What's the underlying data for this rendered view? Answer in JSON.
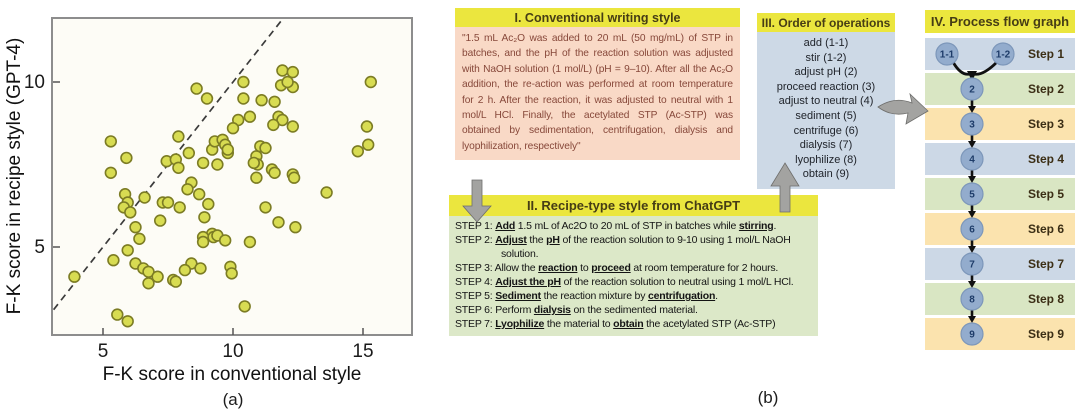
{
  "figure": {
    "label_a": "(a)",
    "label_b": "(b)"
  },
  "chart_data": {
    "type": "scatter",
    "title": "",
    "xlabel": "F-K score in conventional style",
    "ylabel": "F-K score in recipe style (GPT-4)",
    "xlim": [
      3,
      17
    ],
    "ylim": [
      2.3,
      12
    ],
    "xticks": [
      5,
      10,
      15
    ],
    "yticks": [
      5,
      10
    ],
    "grid": false,
    "identity_line": {
      "style": "dashed",
      "from": 3.1,
      "to": 11.95
    },
    "marker": {
      "shape": "circle",
      "fill": "#d8dc52",
      "stroke": "#7c7c24"
    },
    "points": [
      [
        5.3,
        8.2
      ],
      [
        5.9,
        7.7
      ],
      [
        5.3,
        7.25
      ],
      [
        7.9,
        8.35
      ],
      [
        8.6,
        9.8
      ],
      [
        9.0,
        9.5
      ],
      [
        7.45,
        7.6
      ],
      [
        7.8,
        7.65
      ],
      [
        7.9,
        7.4
      ],
      [
        8.3,
        7.85
      ],
      [
        9.2,
        7.95
      ],
      [
        9.3,
        8.2
      ],
      [
        9.6,
        8.25
      ],
      [
        9.7,
        8.1
      ],
      [
        8.85,
        7.55
      ],
      [
        9.4,
        7.5
      ],
      [
        9.8,
        7.85
      ],
      [
        11.9,
        10.35
      ],
      [
        12.3,
        10.3
      ],
      [
        11.85,
        9.9
      ],
      [
        12.3,
        9.85
      ],
      [
        12.1,
        10.0
      ],
      [
        10.4,
        10.0
      ],
      [
        10.4,
        9.5
      ],
      [
        11.1,
        9.45
      ],
      [
        11.6,
        9.4
      ],
      [
        10.2,
        8.85
      ],
      [
        10.65,
        8.95
      ],
      [
        11.75,
        8.95
      ],
      [
        11.9,
        8.85
      ],
      [
        11.55,
        8.7
      ],
      [
        12.3,
        8.65
      ],
      [
        10.0,
        8.6
      ],
      [
        9.8,
        7.95
      ],
      [
        11.05,
        8.05
      ],
      [
        11.25,
        8.0
      ],
      [
        10.9,
        7.75
      ],
      [
        10.95,
        7.5
      ],
      [
        11.5,
        7.35
      ],
      [
        10.8,
        7.55
      ],
      [
        12.3,
        7.2
      ],
      [
        15.3,
        10.0
      ],
      [
        15.15,
        8.65
      ],
      [
        15.2,
        8.1
      ],
      [
        14.8,
        7.9
      ],
      [
        5.85,
        6.6
      ],
      [
        5.95,
        6.35
      ],
      [
        5.8,
        6.2
      ],
      [
        6.05,
        6.05
      ],
      [
        6.6,
        6.5
      ],
      [
        7.3,
        6.35
      ],
      [
        7.5,
        6.35
      ],
      [
        7.2,
        5.8
      ],
      [
        6.25,
        5.6
      ],
      [
        6.4,
        5.25
      ],
      [
        5.95,
        4.9
      ],
      [
        5.4,
        4.6
      ],
      [
        3.9,
        4.1
      ],
      [
        6.25,
        4.5
      ],
      [
        6.55,
        4.35
      ],
      [
        6.75,
        4.25
      ],
      [
        7.1,
        4.1
      ],
      [
        7.7,
        4.0
      ],
      [
        6.75,
        3.9
      ],
      [
        5.55,
        2.95
      ],
      [
        5.95,
        2.75
      ],
      [
        8.4,
        6.95
      ],
      [
        8.25,
        6.75
      ],
      [
        7.95,
        6.2
      ],
      [
        8.7,
        6.6
      ],
      [
        9.05,
        6.3
      ],
      [
        8.9,
        5.9
      ],
      [
        9.2,
        5.4
      ],
      [
        8.85,
        5.3
      ],
      [
        9.25,
        5.3
      ],
      [
        9.4,
        5.35
      ],
      [
        8.85,
        5.15
      ],
      [
        9.7,
        5.2
      ],
      [
        8.4,
        4.5
      ],
      [
        8.15,
        4.3
      ],
      [
        8.75,
        4.35
      ],
      [
        7.8,
        3.95
      ],
      [
        9.9,
        4.4
      ],
      [
        9.95,
        4.2
      ],
      [
        10.9,
        7.1
      ],
      [
        11.6,
        7.25
      ],
      [
        12.35,
        7.1
      ],
      [
        13.6,
        6.65
      ],
      [
        11.25,
        6.2
      ],
      [
        11.75,
        5.75
      ],
      [
        12.4,
        5.6
      ],
      [
        10.65,
        5.15
      ],
      [
        10.45,
        3.2
      ]
    ]
  },
  "panel1": {
    "title": "I. Conventional writing style",
    "body": "\"1.5 mL Ac₂O was added to 20 mL (50 mg/mL) of STP in batches, and the pH of the reaction solution was adjusted with NaOH solution (1 mol/L) (pH = 9–10). After all the Ac₂O addition, the re-action was performed at room temperature for 2 h. After the reaction, it was adjusted to neutral with 1 mol/L HCl. Finally, the acetylated STP (Ac-STP) was obtained by sedimentation, centrifugation, dialysis and lyophilization, respectively\""
  },
  "panel2": {
    "title": "II. Recipe-type style from ChatGPT",
    "steps": [
      [
        {
          "t": "STEP 1: "
        },
        {
          "t": "Add",
          "u": true
        },
        {
          "t": " 1.5 mL of Ac2O to 20 mL of STP in batches while "
        },
        {
          "t": "stirring",
          "u": true
        },
        {
          "t": "."
        }
      ],
      [
        {
          "t": "STEP 2: "
        },
        {
          "t": "Adjust",
          "u": true
        },
        {
          "t": " the "
        },
        {
          "t": "pH",
          "u": true
        },
        {
          "t": " of the reaction solution to 9-10 using 1 mol/L NaOH solution."
        }
      ],
      [
        {
          "t": "STEP 3: Allow the "
        },
        {
          "t": "reaction",
          "u": true
        },
        {
          "t": " to "
        },
        {
          "t": "proceed",
          "u": true
        },
        {
          "t": " at room temperature for 2 hours."
        }
      ],
      [
        {
          "t": "STEP 4: "
        },
        {
          "t": "Adjust the pH",
          "u": true
        },
        {
          "t": " of the reaction solution to neutral using 1 mol/L HCl."
        }
      ],
      [
        {
          "t": "STEP 5: "
        },
        {
          "t": "Sediment",
          "u": true
        },
        {
          "t": " the reaction mixture by "
        },
        {
          "t": "centrifugation",
          "u": true
        },
        {
          "t": "."
        }
      ],
      [
        {
          "t": "STEP 6: Perform "
        },
        {
          "t": "dialysis",
          "u": true
        },
        {
          "t": " on the sedimented material."
        }
      ],
      [
        {
          "t": "STEP 7: "
        },
        {
          "t": "Lyophilize",
          "u": true
        },
        {
          "t": " the material to "
        },
        {
          "t": "obtain",
          "u": true
        },
        {
          "t": " the acetylated STP (Ac-STP)"
        }
      ]
    ]
  },
  "panel3": {
    "title": "III. Order of operations",
    "items": [
      "add (1-1)",
      "stir (1-2)",
      "adjust pH (2)",
      "proceed reaction (3)",
      "adjust to neutral (4)",
      "sediment (5)",
      "centrifuge (6)",
      "dialysis (7)",
      "lyophilize (8)",
      "obtain (9)"
    ]
  },
  "panel4": {
    "title": "IV. Process flow graph",
    "rows": [
      {
        "circles": [
          "1-1",
          "1-2"
        ],
        "label": "Step 1",
        "bg": "blue"
      },
      {
        "circles": [
          "2"
        ],
        "label": "Step 2",
        "bg": "green"
      },
      {
        "circles": [
          "3"
        ],
        "label": "Step 3",
        "bg": "orange"
      },
      {
        "circles": [
          "4"
        ],
        "label": "Step 4",
        "bg": "blue"
      },
      {
        "circles": [
          "5"
        ],
        "label": "Step 5",
        "bg": "green"
      },
      {
        "circles": [
          "6"
        ],
        "label": "Step 6",
        "bg": "orange"
      },
      {
        "circles": [
          "7"
        ],
        "label": "Step 7",
        "bg": "blue"
      },
      {
        "circles": [
          "8"
        ],
        "label": "Step 8",
        "bg": "green"
      },
      {
        "circles": [
          "9"
        ],
        "label": "Step 9",
        "bg": "orange"
      }
    ]
  },
  "colors": {
    "header_yellow": "#ebe63e",
    "panel1_bg": "#f9d9c6",
    "panel1_text": "#87483a",
    "panel2_bg": "#dce8c8",
    "panel3_bg": "#cdd9e6",
    "row_blue": "#ccd8e6",
    "row_green": "#d9e6c3",
    "row_orange": "#fbe3ae",
    "node_fill": "#93accd",
    "node_stroke": "#7d97ba",
    "node_text": "#1e3c69",
    "connector_gray": "#a3a3a1",
    "dot_fill": "#d8dc52",
    "dot_stroke": "#7c7c24"
  }
}
